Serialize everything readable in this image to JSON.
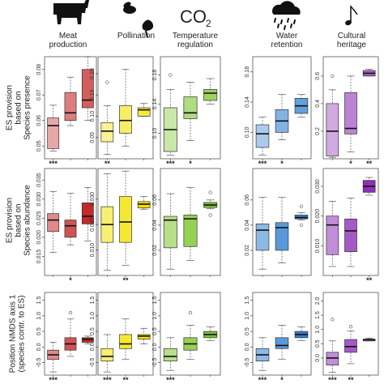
{
  "colors": {
    "meat": "#c62828",
    "pollination": "#f2e200",
    "temperature": "#7cc42a",
    "water": "#2f7fcf",
    "culture": "#8e2fb8"
  },
  "columns": [
    {
      "key": "meat",
      "title_lines": [
        "Meat",
        "production"
      ],
      "icon": "cow-icon"
    },
    {
      "key": "pollination",
      "title_lines": [
        "Pollination"
      ],
      "icon": "bee-flower-icon"
    },
    {
      "key": "temperature",
      "title_lines": [
        "Temperature",
        "regulation"
      ],
      "icon": "co2-icon",
      "icon_text": "CO",
      "icon_sub": "2"
    },
    {
      "key": "water",
      "title_lines": [
        "Water",
        "retention"
      ],
      "icon": "rain-cloud-icon"
    },
    {
      "key": "culture",
      "title_lines": [
        "Cultural",
        "heritage"
      ],
      "icon": "music-note-icon"
    }
  ],
  "rows": [
    {
      "key": "presence",
      "ylabel_lines": [
        "ES provision",
        "based on",
        "Species presence"
      ]
    },
    {
      "key": "abundance",
      "ylabel_lines": [
        "ES provision",
        "based on",
        "Species abundance"
      ]
    },
    {
      "key": "nmds",
      "ylabel_lines": [
        "Position NMDS axis 1",
        "(species contr. to ES)"
      ]
    }
  ],
  "chart_data": [
    {
      "type": "box",
      "row": "presence",
      "column": "meat",
      "yticks": [
        "0.05",
        "0.06",
        "0.07",
        "0.08"
      ],
      "ylim": [
        0.045,
        0.085
      ],
      "boxes": [
        {
          "whislo": 0.048,
          "q1": 0.049,
          "med": 0.058,
          "q3": 0.061,
          "whishi": 0.066
        },
        {
          "whislo": 0.058,
          "q1": 0.06,
          "med": 0.063,
          "q3": 0.071,
          "whishi": 0.077
        },
        {
          "whislo": 0.06,
          "q1": 0.065,
          "med": 0.068,
          "q3": 0.08,
          "whishi": 0.085
        }
      ],
      "outliers": [],
      "sig": [
        "***",
        "",
        ""
      ]
    },
    {
      "type": "box",
      "row": "presence",
      "column": "pollination",
      "yticks": [
        "0.05",
        "0.10",
        "0.15",
        "0.20"
      ],
      "ylim": [
        0.0,
        0.24
      ],
      "boxes": [
        {
          "whislo": 0.01,
          "q1": 0.04,
          "med": 0.065,
          "q3": 0.085,
          "whishi": 0.125
        },
        {
          "whislo": 0.03,
          "q1": 0.06,
          "med": 0.09,
          "q3": 0.125,
          "whishi": 0.21
        },
        {
          "whislo": 0.1,
          "q1": 0.1,
          "med": 0.115,
          "q3": 0.12,
          "whishi": 0.13
        }
      ],
      "outliers": [
        {
          "box": 0,
          "value": 0.18
        }
      ],
      "sig": [
        "**",
        "",
        ""
      ]
    },
    {
      "type": "box",
      "row": "presence",
      "column": "temperature",
      "yticks": [
        "0.10",
        "0.14",
        "0.18"
      ],
      "ylim": [
        0.065,
        0.205
      ],
      "boxes": [
        {
          "whislo": 0.07,
          "q1": 0.075,
          "med": 0.105,
          "q3": 0.135,
          "whishi": 0.16
        },
        {
          "whislo": 0.09,
          "q1": 0.12,
          "med": 0.128,
          "q3": 0.15,
          "whishi": 0.17
        },
        {
          "whislo": 0.14,
          "q1": 0.145,
          "med": 0.155,
          "q3": 0.16,
          "whishi": 0.175
        }
      ],
      "outliers": [
        {
          "box": 0,
          "value": 0.18
        }
      ],
      "sig": [
        "***",
        "*",
        ""
      ]
    },
    {
      "type": "box",
      "row": "presence",
      "column": "water",
      "yticks": [
        "0.10",
        "0.14",
        "0.18"
      ],
      "ylim": [
        0.065,
        0.2
      ],
      "boxes": [
        {
          "whislo": 0.07,
          "q1": 0.08,
          "med": 0.098,
          "q3": 0.11,
          "whishi": 0.12
        },
        {
          "whislo": 0.09,
          "q1": 0.1,
          "med": 0.115,
          "q3": 0.13,
          "whishi": 0.15
        },
        {
          "whislo": 0.12,
          "q1": 0.125,
          "med": 0.135,
          "q3": 0.145,
          "whishi": 0.15
        }
      ],
      "outliers": [],
      "sig": [
        "***",
        "*",
        ""
      ]
    },
    {
      "type": "box",
      "row": "presence",
      "column": "culture",
      "yticks": [
        "0.2",
        "0.4",
        "0.6"
      ],
      "ylim": [
        0.0,
        0.74
      ],
      "boxes": [
        {
          "whislo": 0.01,
          "q1": 0.02,
          "med": 0.2,
          "q3": 0.4,
          "whishi": 0.5
        },
        {
          "whislo": 0.05,
          "q1": 0.18,
          "med": 0.22,
          "q3": 0.48,
          "whishi": 0.6
        },
        {
          "whislo": 0.6,
          "q1": 0.6,
          "med": 0.62,
          "q3": 0.64,
          "whishi": 0.65
        }
      ],
      "outliers": [
        {
          "box": 0,
          "value": 0.6
        }
      ],
      "sig": [
        "",
        "*",
        "**"
      ]
    },
    {
      "type": "box",
      "row": "abundance",
      "column": "meat",
      "yticks": [
        "0.015",
        "0.020",
        "0.025",
        "0.030",
        "0.035"
      ],
      "ylim": [
        0.01,
        0.038
      ],
      "boxes": [
        {
          "whislo": 0.016,
          "q1": 0.0215,
          "med": 0.0245,
          "q3": 0.0262,
          "whishi": 0.032
        },
        {
          "whislo": 0.018,
          "q1": 0.02,
          "med": 0.023,
          "q3": 0.0245,
          "whishi": 0.0315
        },
        {
          "whislo": 0.019,
          "q1": 0.0235,
          "med": 0.0255,
          "q3": 0.029,
          "whishi": 0.033
        }
      ],
      "outliers": [],
      "sig": [
        "",
        "*",
        ""
      ]
    },
    {
      "type": "box",
      "row": "abundance",
      "column": "pollination",
      "yticks": [
        "0.010",
        "0.020",
        "0.030"
      ],
      "ylim": [
        0.0,
        0.042
      ],
      "boxes": [
        {
          "whislo": 0.002,
          "q1": 0.013,
          "med": 0.02,
          "q3": 0.027,
          "whishi": 0.04
        },
        {
          "whislo": 0.004,
          "q1": 0.013,
          "med": 0.021,
          "q3": 0.031,
          "whishi": 0.041
        },
        {
          "whislo": 0.026,
          "q1": 0.0265,
          "med": 0.028,
          "q3": 0.029,
          "whishi": 0.031
        }
      ],
      "outliers": [],
      "sig": [
        "",
        "**",
        ""
      ]
    },
    {
      "type": "box",
      "row": "abundance",
      "column": "temperature",
      "yticks": [
        "0.02",
        "0.04",
        "0.06"
      ],
      "ylim": [
        0.0,
        0.085
      ],
      "boxes": [
        {
          "whislo": 0.005,
          "q1": 0.022,
          "med": 0.044,
          "q3": 0.047,
          "whishi": 0.065
        },
        {
          "whislo": 0.012,
          "q1": 0.023,
          "med": 0.045,
          "q3": 0.048,
          "whishi": 0.07
        },
        {
          "whislo": 0.053,
          "q1": 0.054,
          "med": 0.056,
          "q3": 0.058,
          "whishi": 0.06
        }
      ],
      "outliers": [
        {
          "box": 2,
          "value": 0.066
        },
        {
          "box": 2,
          "value": 0.048
        }
      ],
      "sig": [
        "",
        "",
        ""
      ]
    },
    {
      "type": "box",
      "row": "abundance",
      "column": "water",
      "yticks": [
        "0.02",
        "0.04",
        "0.06"
      ],
      "ylim": [
        0.0,
        0.085
      ],
      "boxes": [
        {
          "whislo": 0.005,
          "q1": 0.02,
          "med": 0.036,
          "q3": 0.041,
          "whishi": 0.062
        },
        {
          "whislo": 0.01,
          "q1": 0.02,
          "med": 0.038,
          "q3": 0.042,
          "whishi": 0.062
        },
        {
          "whislo": 0.044,
          "q1": 0.045,
          "med": 0.046,
          "q3": 0.048,
          "whishi": 0.05
        }
      ],
      "outliers": [
        {
          "box": 2,
          "value": 0.055
        },
        {
          "box": 2,
          "value": 0.04
        }
      ],
      "sig": [
        "",
        "",
        ""
      ]
    },
    {
      "type": "box",
      "row": "abundance",
      "column": "culture",
      "yticks": [
        "0.010",
        "0.020",
        "0.030"
      ],
      "ylim": [
        0.0,
        0.036
      ],
      "boxes": [
        {
          "whislo": 0.003,
          "q1": 0.007,
          "med": 0.017,
          "q3": 0.02,
          "whishi": 0.025
        },
        {
          "whislo": 0.003,
          "q1": 0.008,
          "med": 0.015,
          "q3": 0.019,
          "whishi": 0.026
        },
        {
          "whislo": 0.027,
          "q1": 0.028,
          "med": 0.03,
          "q3": 0.032,
          "whishi": 0.033
        }
      ],
      "outliers": [],
      "sig": [
        "",
        "",
        "**"
      ]
    },
    {
      "type": "box",
      "row": "nmds",
      "column": "meat",
      "yticks": [
        "-0.5",
        "0.0",
        "0.5",
        "1.0",
        "1.5"
      ],
      "ylim": [
        -0.9,
        1.75
      ],
      "boxes": [
        {
          "whislo": -0.8,
          "q1": -0.4,
          "med": -0.25,
          "q3": -0.1,
          "whishi": 0.15
        },
        {
          "whislo": -0.3,
          "q1": -0.1,
          "med": 0.1,
          "q3": 0.3,
          "whishi": 0.9
        },
        {
          "whislo": 0.1,
          "q1": 0.15,
          "med": 0.25,
          "q3": 0.3,
          "whishi": 0.35
        }
      ],
      "outliers": [
        {
          "box": 1,
          "value": 1.1
        }
      ],
      "sig": [
        "***",
        "",
        ""
      ]
    },
    {
      "type": "box",
      "row": "nmds",
      "column": "pollination",
      "yticks": [
        "-0.5",
        "0.0",
        "0.5",
        "1.0",
        "1.5"
      ],
      "ylim": [
        -0.9,
        1.75
      ],
      "boxes": [
        {
          "whislo": -0.8,
          "q1": -0.45,
          "med": -0.3,
          "q3": -0.05,
          "whishi": 0.4
        },
        {
          "whislo": -0.4,
          "q1": -0.05,
          "med": 0.1,
          "q3": 0.4,
          "whishi": 0.9
        },
        {
          "whislo": 0.1,
          "q1": 0.25,
          "med": 0.35,
          "q3": 0.4,
          "whishi": 0.6
        }
      ],
      "outliers": [],
      "sig": [
        "***",
        "**",
        ""
      ]
    },
    {
      "type": "box",
      "row": "nmds",
      "column": "temperature",
      "yticks": [
        "-0.5",
        "0.0",
        "0.5",
        "1.0",
        "1.5"
      ],
      "ylim": [
        -0.9,
        1.75
      ],
      "boxes": [
        {
          "whislo": -0.75,
          "q1": -0.45,
          "med": -0.3,
          "q3": -0.05,
          "whishi": 0.3
        },
        {
          "whislo": -0.4,
          "q1": -0.1,
          "med": 0.1,
          "q3": 0.3,
          "whishi": 0.7
        },
        {
          "whislo": 0.2,
          "q1": 0.3,
          "med": 0.4,
          "q3": 0.5,
          "whishi": 0.65
        }
      ],
      "outliers": [
        {
          "box": 1,
          "value": 1.1
        }
      ],
      "sig": [
        "***",
        "",
        ""
      ]
    },
    {
      "type": "box",
      "row": "nmds",
      "column": "water",
      "yticks": [
        "-0.5",
        "0.0",
        "0.5",
        "1.0",
        "1.5"
      ],
      "ylim": [
        -0.9,
        1.75
      ],
      "boxes": [
        {
          "whislo": -0.75,
          "q1": -0.45,
          "med": -0.25,
          "q3": -0.05,
          "whishi": 0.3
        },
        {
          "whislo": -0.4,
          "q1": -0.05,
          "med": 0.05,
          "q3": 0.3,
          "whishi": 0.7
        },
        {
          "whislo": 0.2,
          "q1": 0.3,
          "med": 0.4,
          "q3": 0.5,
          "whishi": 0.65
        }
      ],
      "outliers": [],
      "sig": [
        "***",
        "*",
        ""
      ]
    },
    {
      "type": "box",
      "row": "nmds",
      "column": "culture",
      "yticks": [
        "0.0",
        "0.5",
        "1.0",
        "1.5",
        "2.0"
      ],
      "ylim": [
        -0.6,
        2.3
      ],
      "boxes": [
        {
          "whislo": -0.5,
          "q1": -0.25,
          "med": 0.0,
          "q3": 0.2,
          "whishi": 0.6
        },
        {
          "whislo": -0.2,
          "q1": 0.2,
          "med": 0.4,
          "q3": 0.65,
          "whishi": 0.95
        },
        {
          "whislo": 0.6,
          "q1": 0.6,
          "med": 0.65,
          "q3": 0.65,
          "whishi": 0.7
        }
      ],
      "outliers": [
        {
          "box": 0,
          "value": 1.35
        },
        {
          "box": 1,
          "value": 1.1
        }
      ],
      "sig": [
        "***",
        "**",
        ""
      ]
    }
  ]
}
